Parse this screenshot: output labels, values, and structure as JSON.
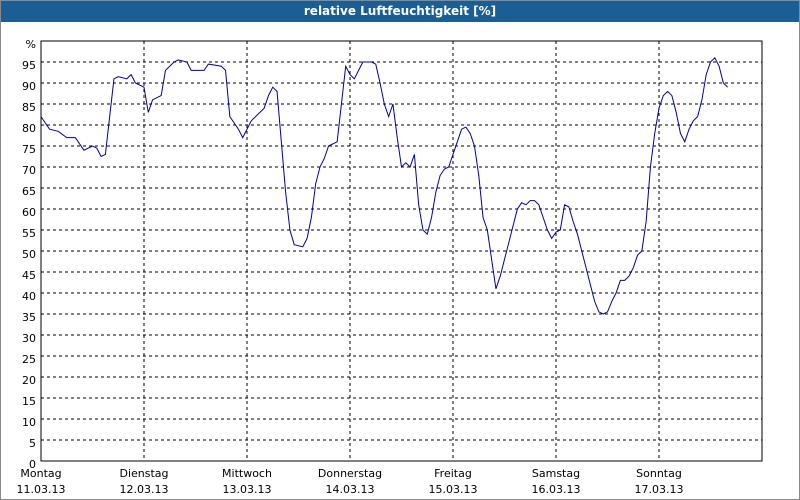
{
  "chart_data": {
    "type": "line",
    "title": "relative Luftfeuchtigkeit [%]",
    "xlim": [
      0,
      168
    ],
    "xticks": [
      {
        "value": 0,
        "label": "Montag"
      },
      {
        "value": 24,
        "label": "Dienstag"
      },
      {
        "value": 48,
        "label": "Mittwoch"
      },
      {
        "value": 72,
        "label": "Donnerstag"
      },
      {
        "value": 96,
        "label": "Freitag"
      },
      {
        "value": 120,
        "label": "Samstag"
      },
      {
        "value": 144,
        "label": "Sonntag"
      }
    ],
    "xtick_dates": [
      "11.03.13",
      "12.03.13",
      "13.03.13",
      "14.03.13",
      "15.03.13",
      "16.03.13",
      "17.03.13"
    ],
    "ylim": [
      0,
      100
    ],
    "yticks": [
      0,
      5,
      10,
      15,
      20,
      25,
      30,
      35,
      40,
      45,
      50,
      55,
      60,
      65,
      70,
      75,
      80,
      85,
      90,
      95,
      {
        "value": 100,
        "label": "%"
      }
    ],
    "grid": true,
    "series": [
      {
        "color": "#0000a0",
        "x": [
          0,
          2,
          4,
          6,
          8,
          10,
          12,
          13,
          14,
          15,
          16,
          17,
          18,
          20,
          21,
          22,
          24,
          25,
          26,
          28,
          29,
          31,
          32,
          34,
          35,
          38,
          39,
          42,
          43,
          44,
          46,
          47,
          48,
          49,
          50,
          52,
          53,
          54,
          55,
          56,
          57,
          58,
          59,
          61,
          62,
          63,
          64,
          65,
          66,
          67,
          69,
          70,
          71,
          72,
          73,
          74,
          75,
          77,
          78,
          79,
          80,
          81,
          82,
          83,
          84,
          85,
          86,
          87,
          88,
          89,
          90,
          91,
          92,
          93,
          94,
          95,
          96,
          97,
          98,
          99,
          100,
          101,
          102,
          103,
          104,
          105,
          106,
          107,
          108,
          109,
          110,
          111,
          112,
          113,
          114,
          115,
          116,
          117,
          118,
          119,
          120,
          121,
          122,
          123,
          124,
          125,
          126,
          127,
          128,
          129,
          130,
          131,
          132,
          133,
          134,
          135,
          136,
          137,
          138,
          139,
          140,
          141,
          142,
          143,
          144,
          145,
          146,
          147,
          148,
          149,
          150,
          151,
          152,
          153,
          154,
          155,
          156,
          157,
          158,
          159,
          160
        ],
        "values": [
          82,
          79,
          78.5,
          77,
          77,
          74,
          75,
          74.5,
          72.5,
          73,
          82,
          91,
          91.5,
          91,
          92,
          90,
          89,
          83,
          86,
          87,
          93,
          95,
          95.5,
          95,
          93,
          93,
          94.5,
          94,
          93,
          82,
          79,
          77,
          79,
          81,
          82,
          84,
          87,
          89,
          88,
          76,
          64,
          55,
          51.5,
          51,
          53,
          58,
          66,
          70,
          72,
          75,
          76,
          85,
          94,
          92,
          91,
          93,
          95,
          95,
          94.5,
          90,
          85,
          82,
          85,
          77,
          70,
          71,
          70,
          73,
          61,
          55,
          54,
          58,
          64,
          68,
          69.5,
          70,
          73,
          76,
          79,
          79.5,
          78,
          75,
          68,
          58,
          55,
          48,
          41,
          44,
          48,
          52,
          56,
          60,
          61.5,
          61,
          62,
          62,
          61,
          58,
          55,
          53,
          54.5,
          55,
          61,
          60.5,
          57,
          54,
          50,
          46,
          42,
          38,
          35.5,
          35,
          35.5,
          38,
          40,
          43,
          43,
          44,
          46,
          49,
          50,
          57,
          70,
          78,
          84,
          87,
          88,
          87,
          83,
          78,
          76,
          79,
          81,
          82,
          86,
          92,
          95,
          96,
          94,
          90,
          89
        ]
      }
    ]
  }
}
